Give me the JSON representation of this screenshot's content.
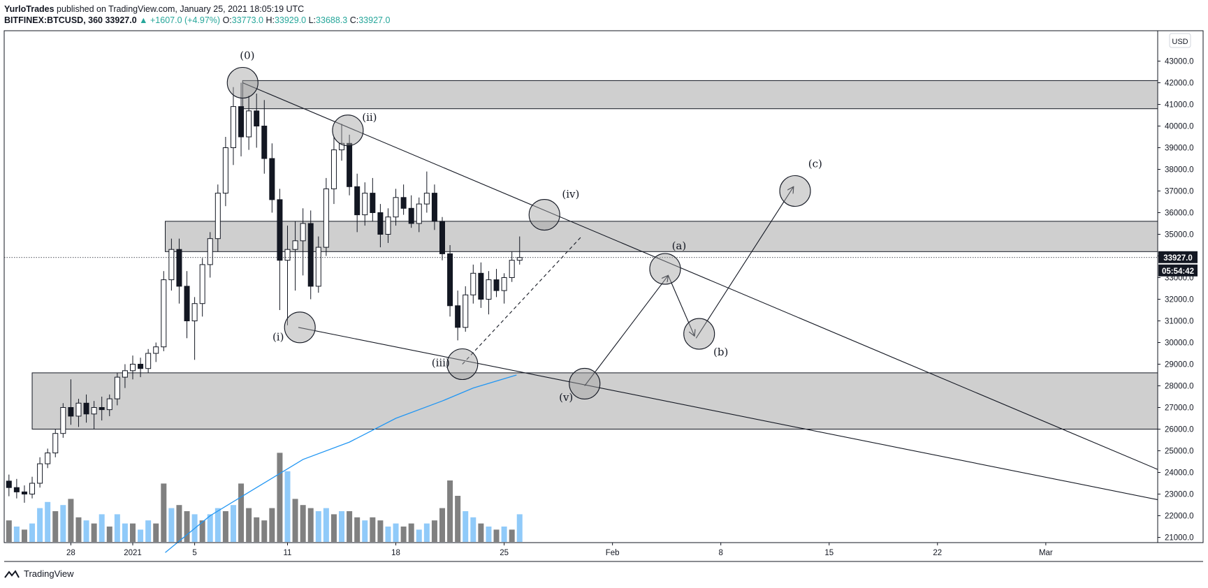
{
  "header": {
    "author": "YurloTrades",
    "published_text": "published on TradingView.com, January 25, 2021 18:05:19 UTC",
    "symbol": "BITFINEX:BTCUSD, 360",
    "last": "33927.0",
    "change": "▲ +1607.0 (+4.97%)",
    "o_label": "O:",
    "o_val": "33773.0",
    "h_label": "H:",
    "h_val": "33929.0",
    "l_label": "L:",
    "l_val": "33688.3",
    "c_label": "C:",
    "c_val": "33927.0"
  },
  "price_axis": {
    "currency_badge": "USD",
    "price_label": "33927.0",
    "countdown_label": "05:54:42"
  },
  "footer": {
    "brand": "TradingView"
  },
  "colors": {
    "candle": "#131722",
    "zone_fill": "#cfcfcf",
    "vol_up": "#90caf9",
    "vol_down": "#808080",
    "ma": "#2196f3",
    "text": "#131722"
  },
  "chart_data": {
    "type": "candlestick",
    "title": "BITFINEX:BTCUSD, 360",
    "x_ticks": [
      {
        "label": "28",
        "day": -4
      },
      {
        "label": "2021",
        "day": 0
      },
      {
        "label": "5",
        "day": 4
      },
      {
        "label": "11",
        "day": 10
      },
      {
        "label": "18",
        "day": 17
      },
      {
        "label": "25",
        "day": 24
      },
      {
        "label": "Feb",
        "day": 31
      },
      {
        "label": "8",
        "day": 38
      },
      {
        "label": "15",
        "day": 45
      },
      {
        "label": "22",
        "day": 52
      },
      {
        "label": "Mar",
        "day": 59
      }
    ],
    "y_ticks": [
      21000,
      22000,
      23000,
      24000,
      25000,
      26000,
      27000,
      28000,
      29000,
      30000,
      31000,
      32000,
      33000,
      34000,
      35000,
      36000,
      37000,
      38000,
      39000,
      40000,
      41000,
      42000,
      43000
    ],
    "ylim": [
      20500,
      44200
    ],
    "xlim_days": [
      -8,
      70
    ],
    "zones": [
      {
        "from_day": 7.1,
        "to_day": 70,
        "low": 40800,
        "high": 42100
      },
      {
        "from_day": 2.1,
        "to_day": 70,
        "low": 34200,
        "high": 35600
      },
      {
        "from_day": -6.5,
        "to_day": 70,
        "low": 26000,
        "high": 28600
      }
    ],
    "trendlines": [
      {
        "from": [
          7.1,
          42000
        ],
        "to": [
          70,
          23000
        ],
        "style": "solid"
      },
      {
        "from": [
          10.7,
          30700
        ],
        "to": [
          70,
          22200
        ],
        "style": "solid"
      },
      {
        "from": [
          21.3,
          29000
        ],
        "to": [
          29,
          34900
        ],
        "style": "dashed"
      },
      {
        "from": [
          29.2,
          28000
        ],
        "to": [
          34.6,
          33100
        ],
        "style": "arrow"
      },
      {
        "from": [
          34.6,
          33100
        ],
        "to": [
          36.3,
          30300
        ],
        "style": "arrow"
      },
      {
        "from": [
          36.4,
          30200
        ],
        "to": [
          42.7,
          37200
        ],
        "style": "arrow"
      }
    ],
    "wave_markers": [
      {
        "label": "(0)",
        "day": 7.1,
        "price": 42000,
        "label_day": 7.4,
        "label_price": 43100
      },
      {
        "label": "(ii)",
        "day": 13.9,
        "price": 39800,
        "label_day": 15.3,
        "label_price": 40250
      },
      {
        "label": "(i)",
        "day": 10.8,
        "price": 30700,
        "label_day": 9.4,
        "label_price": 30100
      },
      {
        "label": "(iii)",
        "day": 21.3,
        "price": 29000,
        "label_day": 19.9,
        "label_price": 28900
      },
      {
        "label": "(iv)",
        "day": 26.6,
        "price": 35900,
        "label_day": 28.3,
        "label_price": 36700
      },
      {
        "label": "(v)",
        "day": 29.2,
        "price": 28100,
        "label_day": 28,
        "label_price": 27300
      },
      {
        "label": "(a)",
        "day": 34.4,
        "price": 33400,
        "label_day": 35.3,
        "label_price": 34300
      },
      {
        "label": "(b)",
        "day": 36.6,
        "price": 30400,
        "label_day": 38.0,
        "label_price": 29400
      },
      {
        "label": "(c)",
        "day": 42.8,
        "price": 37000,
        "label_day": 44.1,
        "label_price": 38100
      }
    ],
    "last_price": 33927,
    "moving_average": [
      [
        2.1,
        20300
      ],
      [
        5,
        22000
      ],
      [
        8,
        23300
      ],
      [
        11,
        24600
      ],
      [
        14,
        25400
      ],
      [
        17,
        26500
      ],
      [
        20,
        27300
      ],
      [
        22,
        27900
      ],
      [
        24.8,
        28500
      ]
    ],
    "candles": [
      [
        -8,
        23600,
        23900,
        22900,
        23300
      ],
      [
        -7.5,
        23300,
        23700,
        22800,
        23100
      ],
      [
        -7,
        23100,
        23400,
        22600,
        23000
      ],
      [
        -6.5,
        23000,
        23800,
        22800,
        23500
      ],
      [
        -6,
        23500,
        24700,
        23300,
        24400
      ],
      [
        -5.5,
        24400,
        25100,
        24200,
        24900
      ],
      [
        -5,
        24900,
        26000,
        24700,
        25800
      ],
      [
        -4.5,
        25800,
        27200,
        25600,
        27000
      ],
      [
        -4,
        27000,
        28300,
        26200,
        26600
      ],
      [
        -3.5,
        26600,
        27400,
        26100,
        27200
      ],
      [
        -3,
        27200,
        27600,
        26300,
        26700
      ],
      [
        -2.5,
        26700,
        27300,
        26000,
        27000
      ],
      [
        -2,
        27000,
        27500,
        26400,
        26900
      ],
      [
        -1.5,
        26900,
        27600,
        26600,
        27400
      ],
      [
        -1,
        27400,
        28600,
        27100,
        28400
      ],
      [
        -0.5,
        28400,
        29000,
        27900,
        28700
      ],
      [
        0,
        28700,
        29400,
        28300,
        29000
      ],
      [
        0.5,
        29000,
        29300,
        28400,
        28800
      ],
      [
        1,
        28800,
        29700,
        28600,
        29500
      ],
      [
        1.5,
        29500,
        30000,
        29100,
        29800
      ],
      [
        2,
        29800,
        33300,
        29600,
        32900
      ],
      [
        2.5,
        32900,
        34800,
        32400,
        34300
      ],
      [
        3,
        34300,
        34800,
        31800,
        32600
      ],
      [
        3.5,
        32600,
        33300,
        30200,
        31000
      ],
      [
        4,
        31000,
        32100,
        29200,
        31800
      ],
      [
        4.5,
        31800,
        33900,
        31200,
        33600
      ],
      [
        5,
        33600,
        35100,
        33000,
        34800
      ],
      [
        5.5,
        34800,
        37300,
        34200,
        36900
      ],
      [
        6,
        36900,
        39500,
        36300,
        39000
      ],
      [
        6.5,
        39000,
        41800,
        38200,
        40900
      ],
      [
        7,
        40900,
        42000,
        38600,
        39500
      ],
      [
        7.5,
        39500,
        41400,
        38900,
        40700
      ],
      [
        8,
        40700,
        41500,
        39000,
        40000
      ],
      [
        8.5,
        40000,
        41200,
        37800,
        38500
      ],
      [
        9,
        38500,
        39200,
        36000,
        36600
      ],
      [
        9.5,
        36600,
        37100,
        31500,
        33800
      ],
      [
        10,
        33800,
        35400,
        30800,
        34300
      ],
      [
        10.5,
        34300,
        35600,
        32400,
        34700
      ],
      [
        11,
        34700,
        36200,
        33100,
        35500
      ],
      [
        11.5,
        35500,
        36100,
        32000,
        32600
      ],
      [
        12,
        32600,
        34900,
        32300,
        34400
      ],
      [
        12.5,
        34400,
        37600,
        34000,
        37100
      ],
      [
        13,
        37100,
        39500,
        36400,
        38900
      ],
      [
        13.5,
        38900,
        40100,
        38400,
        39200
      ],
      [
        14,
        39200,
        39600,
        36800,
        37200
      ],
      [
        14.5,
        37200,
        37800,
        35100,
        35900
      ],
      [
        15,
        35900,
        37400,
        35400,
        36900
      ],
      [
        15.5,
        36900,
        37600,
        35600,
        36000
      ],
      [
        16,
        36000,
        36400,
        34400,
        35000
      ],
      [
        16.5,
        35000,
        36200,
        34600,
        35800
      ],
      [
        17,
        35800,
        37100,
        35400,
        36700
      ],
      [
        17.5,
        36700,
        37300,
        35900,
        36200
      ],
      [
        18,
        36200,
        36800,
        35300,
        35500
      ],
      [
        18.5,
        35500,
        36700,
        35100,
        36400
      ],
      [
        19,
        36400,
        37900,
        36000,
        36900
      ],
      [
        19.5,
        36900,
        37300,
        35200,
        35600
      ],
      [
        20,
        35600,
        35800,
        33800,
        34100
      ],
      [
        20.5,
        34100,
        34500,
        31200,
        31700
      ],
      [
        21,
        31700,
        32400,
        30100,
        30700
      ],
      [
        21.5,
        30700,
        32600,
        30500,
        32200
      ],
      [
        22,
        32200,
        33600,
        31800,
        33200
      ],
      [
        22.5,
        33200,
        33700,
        31600,
        32000
      ],
      [
        23,
        32000,
        33300,
        31300,
        32900
      ],
      [
        23.5,
        32900,
        33400,
        32100,
        32400
      ],
      [
        24,
        32400,
        33200,
        31800,
        33000
      ],
      [
        24.5,
        33000,
        34200,
        32800,
        33800
      ],
      [
        25,
        33800,
        34900,
        33600,
        33927
      ]
    ],
    "volumes": [
      [
        -8,
        0.35,
        "d"
      ],
      [
        -7.5,
        0.25,
        "u"
      ],
      [
        -7,
        0.2,
        "d"
      ],
      [
        -6.5,
        0.3,
        "u"
      ],
      [
        -6,
        0.55,
        "u"
      ],
      [
        -5.5,
        0.65,
        "u"
      ],
      [
        -5,
        0.5,
        "d"
      ],
      [
        -4.5,
        0.6,
        "u"
      ],
      [
        -4,
        0.7,
        "d"
      ],
      [
        -3.5,
        0.4,
        "d"
      ],
      [
        -3,
        0.35,
        "u"
      ],
      [
        -2.5,
        0.3,
        "d"
      ],
      [
        -2,
        0.45,
        "u"
      ],
      [
        -1.5,
        0.25,
        "d"
      ],
      [
        -1,
        0.45,
        "u"
      ],
      [
        -0.5,
        0.3,
        "u"
      ],
      [
        0,
        0.3,
        "d"
      ],
      [
        0.5,
        0.2,
        "u"
      ],
      [
        1,
        0.35,
        "u"
      ],
      [
        1.5,
        0.3,
        "d"
      ],
      [
        2,
        0.95,
        "d"
      ],
      [
        2.5,
        0.55,
        "u"
      ],
      [
        3,
        0.6,
        "d"
      ],
      [
        3.5,
        0.5,
        "d"
      ],
      [
        4,
        0.45,
        "u"
      ],
      [
        4.5,
        0.35,
        "d"
      ],
      [
        5,
        0.45,
        "u"
      ],
      [
        5.5,
        0.55,
        "u"
      ],
      [
        6,
        0.5,
        "d"
      ],
      [
        6.5,
        0.6,
        "u"
      ],
      [
        7,
        0.95,
        "d"
      ],
      [
        7.5,
        0.55,
        "d"
      ],
      [
        8,
        0.4,
        "d"
      ],
      [
        8.5,
        0.35,
        "d"
      ],
      [
        9,
        0.55,
        "d"
      ],
      [
        9.5,
        1.45,
        "d"
      ],
      [
        10,
        1.15,
        "u"
      ],
      [
        10.5,
        0.7,
        "d"
      ],
      [
        11,
        0.6,
        "d"
      ],
      [
        11.5,
        0.55,
        "d"
      ],
      [
        12,
        0.5,
        "u"
      ],
      [
        12.5,
        0.55,
        "u"
      ],
      [
        13,
        0.45,
        "d"
      ],
      [
        13.5,
        0.5,
        "u"
      ],
      [
        14,
        0.5,
        "d"
      ],
      [
        14.5,
        0.4,
        "d"
      ],
      [
        15,
        0.35,
        "u"
      ],
      [
        15.5,
        0.4,
        "d"
      ],
      [
        16,
        0.35,
        "d"
      ],
      [
        16.5,
        0.25,
        "u"
      ],
      [
        17,
        0.3,
        "u"
      ],
      [
        17.5,
        0.25,
        "d"
      ],
      [
        18,
        0.3,
        "d"
      ],
      [
        18.5,
        0.2,
        "u"
      ],
      [
        19,
        0.3,
        "u"
      ],
      [
        19.5,
        0.35,
        "d"
      ],
      [
        20,
        0.55,
        "d"
      ],
      [
        20.5,
        1.0,
        "d"
      ],
      [
        21,
        0.75,
        "d"
      ],
      [
        21.5,
        0.5,
        "u"
      ],
      [
        22,
        0.4,
        "u"
      ],
      [
        22.5,
        0.3,
        "d"
      ],
      [
        23,
        0.25,
        "u"
      ],
      [
        23.5,
        0.2,
        "d"
      ],
      [
        24,
        0.25,
        "u"
      ],
      [
        24.5,
        0.2,
        "d"
      ],
      [
        25,
        0.45,
        "u"
      ]
    ]
  }
}
